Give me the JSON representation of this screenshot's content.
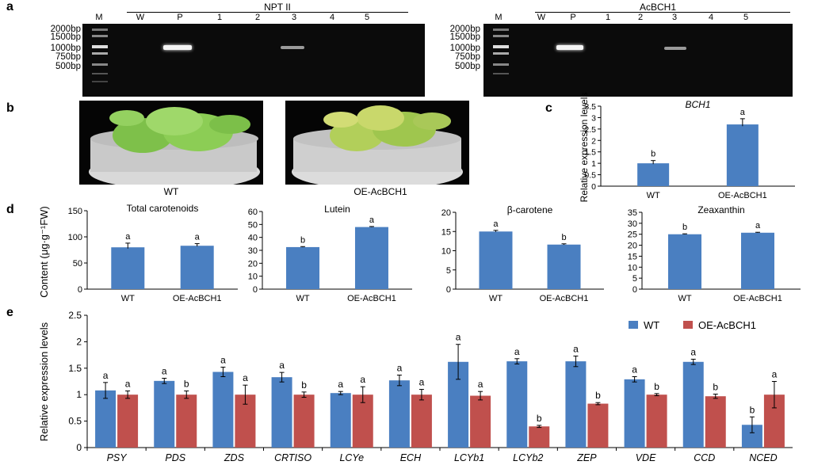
{
  "panels": {
    "a": "a",
    "b": "b",
    "c": "c",
    "d": "d",
    "e": "e"
  },
  "gels": [
    {
      "title": "NPT II",
      "lanes": [
        "M",
        "W",
        "P",
        "1",
        "2",
        "3",
        "4",
        "5"
      ],
      "ladder": [
        "2000bp",
        "1500bp",
        "1000bp",
        "750bp",
        "500bp"
      ]
    },
    {
      "title": "AcBCH1",
      "lanes": [
        "M",
        "W",
        "P",
        "1",
        "2",
        "3",
        "4",
        "5"
      ],
      "ladder": [
        "2000bp",
        "1500bp",
        "1000bp",
        "750bp",
        "500bp"
      ]
    }
  ],
  "photos": {
    "wt_label": "WT",
    "oe_label": "OE-AcBCH1"
  },
  "colors": {
    "wt": "#4a7fc1",
    "oe": "#c0504d"
  },
  "chart_data": [
    {
      "id": "c",
      "type": "bar",
      "title": "BCH1",
      "ylabel": "Relative expression levels",
      "categories": [
        "WT",
        "OE-AcBCH1"
      ],
      "values": [
        1.0,
        2.7
      ],
      "errors": [
        0.12,
        0.25
      ],
      "letters": [
        "b",
        "a"
      ],
      "ylim": [
        0,
        3.5
      ],
      "yticks": [
        "0",
        "0.5",
        "1",
        "1.5",
        "2",
        "2.5",
        "3",
        "3.5"
      ]
    },
    {
      "id": "d1",
      "type": "bar",
      "title": "Total carotenoids",
      "ylabel": "Content (μg·g⁻¹FW)",
      "categories": [
        "WT",
        "OE-AcBCH1"
      ],
      "values": [
        80,
        83
      ],
      "errors": [
        8,
        4
      ],
      "letters": [
        "a",
        "a"
      ],
      "ylim": [
        0,
        150
      ],
      "yticks": [
        "0",
        "50",
        "100",
        "150"
      ]
    },
    {
      "id": "d2",
      "type": "bar",
      "title": "Lutein",
      "categories": [
        "WT",
        "OE-AcBCH1"
      ],
      "values": [
        32.5,
        48
      ],
      "errors": [
        0.4,
        0.4
      ],
      "letters": [
        "b",
        "a"
      ],
      "ylim": [
        0,
        60
      ],
      "yticks": [
        "0",
        "10",
        "20",
        "30",
        "40",
        "50",
        "60"
      ]
    },
    {
      "id": "d3",
      "type": "bar",
      "title": "β-carotene",
      "categories": [
        "WT",
        "OE-AcBCH1"
      ],
      "values": [
        15,
        11.6
      ],
      "errors": [
        0.3,
        0.2
      ],
      "letters": [
        "a",
        "b"
      ],
      "ylim": [
        0,
        20
      ],
      "yticks": [
        "0",
        "5",
        "10",
        "15",
        "20"
      ]
    },
    {
      "id": "d4",
      "type": "bar",
      "title": "Zeaxanthin",
      "categories": [
        "WT",
        "OE-AcBCH1"
      ],
      "values": [
        25,
        25.7
      ],
      "errors": [
        0.2,
        0.2
      ],
      "letters": [
        "b",
        "a"
      ],
      "ylim": [
        0,
        35
      ],
      "yticks": [
        "0",
        "5",
        "10",
        "15",
        "20",
        "25",
        "30",
        "35"
      ]
    },
    {
      "id": "e",
      "type": "bar",
      "ylabel": "Relative expression levels",
      "categories": [
        "PSY",
        "PDS",
        "ZDS",
        "CRTISO",
        "LCYe",
        "ECH",
        "LCYb1",
        "LCYb2",
        "ZEP",
        "VDE",
        "CCD",
        "NCED"
      ],
      "series": [
        {
          "name": "WT",
          "values": [
            1.08,
            1.26,
            1.43,
            1.33,
            1.03,
            1.27,
            1.62,
            1.63,
            1.63,
            1.29,
            1.62,
            0.43
          ],
          "errors": [
            0.15,
            0.05,
            0.09,
            0.09,
            0.03,
            0.1,
            0.33,
            0.05,
            0.1,
            0.05,
            0.05,
            0.15
          ],
          "letters": [
            "a",
            "a",
            "a",
            "a",
            "a",
            "a",
            "a",
            "a",
            "a",
            "a",
            "a",
            "b"
          ]
        },
        {
          "name": "OE-AcBCH1",
          "values": [
            1.0,
            1.0,
            1.0,
            1.0,
            1.0,
            1.0,
            0.98,
            0.4,
            0.83,
            1.0,
            0.97,
            1.0
          ],
          "errors": [
            0.07,
            0.07,
            0.18,
            0.05,
            0.15,
            0.1,
            0.08,
            0.02,
            0.02,
            0.02,
            0.04,
            0.25
          ],
          "letters": [
            "a",
            "b",
            "a",
            "b",
            "a",
            "a",
            "a",
            "b",
            "b",
            "b",
            "b",
            "a"
          ]
        }
      ],
      "ylim": [
        0,
        2.5
      ],
      "yticks": [
        "0",
        "0.5",
        "1",
        "1.5",
        "2",
        "2.5"
      ],
      "legend": "top-right"
    }
  ]
}
